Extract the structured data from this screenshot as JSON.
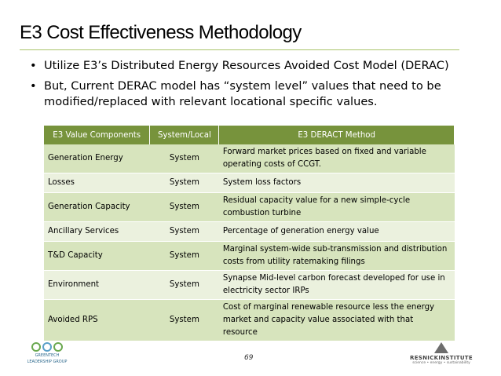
{
  "slide": {
    "title": "E3 Cost Effectiveness Methodology",
    "bullets": [
      "Utilize E3’s Distributed Energy Resources Avoided Cost Model (DERAC)",
      "But, Current DERAC model has “system level” values that need to be modified/replaced with relevant locational specific values."
    ],
    "bullet_glyph": "•",
    "page_number": "69"
  },
  "table": {
    "headers": [
      "E3 Value Components",
      "System/Local",
      "E3 DERACT Method"
    ],
    "rows": [
      [
        "Generation Energy",
        "System",
        "Forward market prices based on fixed and variable operating costs of CCGT."
      ],
      [
        "Losses",
        "System",
        "System loss factors"
      ],
      [
        "Generation Capacity",
        "System",
        "Residual capacity value for a new simple-cycle combustion turbine"
      ],
      [
        "Ancillary Services",
        "System",
        "Percentage of generation energy value"
      ],
      [
        "T&D Capacity",
        "System",
        "Marginal system-wide sub-transmission and distribution costs from utility ratemaking filings"
      ],
      [
        "Environment",
        "System",
        "Synapse Mid-level carbon forecast developed for use in electricity sector IRPs"
      ],
      [
        "Avoided RPS",
        "System",
        "Cost of marginal renewable resource less the energy market and capacity value associated with that resource"
      ]
    ]
  },
  "logos": {
    "left": {
      "line1": "GREENTECH",
      "line2": "LEADERSHIP GROUP"
    },
    "right": {
      "name": "RESNICKINSTITUTE",
      "tagline": "science • energy • sustainability"
    }
  },
  "colors": {
    "header_bg": "#77933c",
    "row_odd": "#d7e4bd",
    "row_even": "#ebf1de",
    "title_rule": "#a9c46a"
  }
}
